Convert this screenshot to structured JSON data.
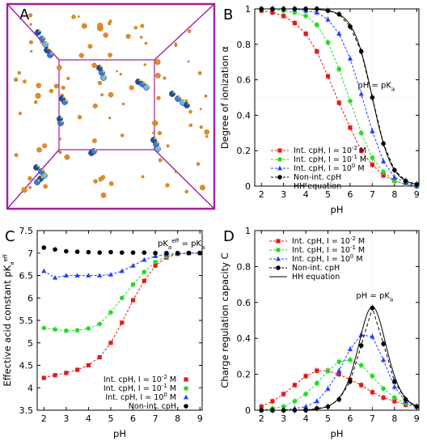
{
  "panel_labels": [
    "A",
    "B",
    "C",
    "D"
  ],
  "colors": {
    "red": "#e41a1c",
    "green": "#22dd22",
    "blue": "#1f3fff",
    "black": "#000000",
    "box": "#a020a0",
    "ion": "#e88a20",
    "polymer": "#3a7bd5"
  },
  "chart_data": [
    {
      "panel": "B",
      "type": "line",
      "xlabel": "pH",
      "ylabel": "Degree of ionization α",
      "xlim": [
        1.7,
        9.1
      ],
      "ylim": [
        0,
        1
      ],
      "xticks": [
        2,
        3,
        4,
        5,
        6,
        7,
        8,
        9
      ],
      "yticks": [
        0,
        0.2,
        0.4,
        0.6,
        0.8,
        1
      ],
      "annotation": {
        "text": "pH = pK",
        "sub": "a",
        "x": 7.0,
        "y": 0.5
      },
      "legend": [
        "Int. cpH, I = 10-2 M",
        "Int. cpH, I = 10-1 M",
        "Int. cpH, I = 100 M",
        "Non-int. cpH",
        "HH equation"
      ],
      "legend_display": [
        {
          "pre": "Int. cpH, I = 10",
          "sup": "-2",
          "post": " M"
        },
        {
          "pre": "Int. cpH, I = 10",
          "sup": "-1",
          "post": " M"
        },
        {
          "pre": "Int. cpH, I = 10",
          "sup": "0",
          "post": " M"
        },
        {
          "pre": "Non-int. cpH",
          "sup": "",
          "post": ""
        },
        {
          "pre": "HH equation",
          "sup": "",
          "post": ""
        }
      ],
      "x": [
        2,
        2.5,
        3,
        3.5,
        4,
        4.5,
        5,
        5.5,
        6,
        6.5,
        7,
        7.5,
        8,
        8.5,
        9
      ],
      "series": [
        {
          "name": "Int. cpH, I = 10-2 M",
          "color": "red",
          "marker": "square",
          "values": [
            0.99,
            0.98,
            0.96,
            0.92,
            0.86,
            0.76,
            0.62,
            0.47,
            0.33,
            0.2,
            0.12,
            0.06,
            0.03,
            0.01,
            0.0
          ]
        },
        {
          "name": "Int. cpH, I = 10-1 M",
          "color": "green",
          "marker": "circle",
          "values": [
            1.0,
            1.0,
            0.99,
            0.98,
            0.96,
            0.91,
            0.81,
            0.66,
            0.48,
            0.3,
            0.16,
            0.08,
            0.03,
            0.01,
            0.0
          ]
        },
        {
          "name": "Int. cpH, I = 100 M",
          "color": "blue",
          "marker": "triangle",
          "values": [
            1.0,
            1.0,
            1.0,
            1.0,
            0.99,
            0.98,
            0.94,
            0.86,
            0.72,
            0.52,
            0.31,
            0.14,
            0.05,
            0.02,
            0.0
          ]
        },
        {
          "name": "Non-int. cpH",
          "color": "black",
          "marker": "circle",
          "values": [
            1.0,
            1.0,
            1.0,
            1.0,
            1.0,
            1.0,
            0.99,
            0.97,
            0.9,
            0.76,
            0.5,
            0.24,
            0.09,
            0.03,
            0.01
          ]
        },
        {
          "name": "HH equation",
          "color": "black",
          "marker": "none",
          "function": "hh",
          "pKa": 7.0
        }
      ]
    },
    {
      "panel": "C",
      "type": "scatter",
      "xlabel": "pH",
      "ylabel": "Effective acid constant pKaeff",
      "ylabel_display": {
        "pre": "Effective acid constant pK",
        "sub": "a",
        "sup": "eff"
      },
      "xlim": [
        1.7,
        9.1
      ],
      "ylim": [
        3.5,
        7.5
      ],
      "xticks": [
        2,
        3,
        4,
        5,
        6,
        7,
        8,
        9
      ],
      "yticks": [
        3.5,
        4,
        4.5,
        5,
        5.5,
        6,
        6.5,
        7,
        7.5
      ],
      "annotation": {
        "text": "pKaeff = pKa"
      },
      "legend": [
        "Int. cpH, I = 10-2 M",
        "Int. cpH, I = 10-1 M",
        "Int. cpH, I = 100 M",
        "Non-int. cpH"
      ],
      "legend_display": [
        {
          "pre": "Int. cpH, I = 10",
          "sup": "-2",
          "post": " M"
        },
        {
          "pre": "Int. cpH, I = 10",
          "sup": "-1",
          "post": " M"
        },
        {
          "pre": "Int. cpH, I = 10",
          "sup": "0",
          "post": " M"
        },
        {
          "pre": "Non-int. cpH",
          "sup": "",
          "post": ""
        }
      ],
      "x": [
        2,
        2.5,
        3,
        3.5,
        4,
        4.5,
        5,
        5.5,
        6,
        6.5,
        7,
        7.5,
        8,
        8.5,
        9
      ],
      "series": [
        {
          "name": "Int. cpH, I = 10-2 M",
          "color": "red",
          "marker": "square",
          "values": [
            4.22,
            4.28,
            4.33,
            4.4,
            4.5,
            4.68,
            5.0,
            5.45,
            5.95,
            6.38,
            6.72,
            6.9,
            6.98,
            7.0,
            7.0
          ]
        },
        {
          "name": "Int. cpH, I = 10-1 M",
          "color": "green",
          "marker": "circle",
          "values": [
            5.33,
            5.3,
            5.27,
            5.28,
            5.32,
            5.42,
            5.68,
            6.0,
            6.3,
            6.58,
            6.8,
            6.93,
            6.98,
            7.0,
            7.0
          ]
        },
        {
          "name": "Int. cpH, I = 100 M",
          "color": "blue",
          "marker": "triangle",
          "values": [
            6.6,
            6.45,
            6.5,
            6.5,
            6.5,
            6.5,
            6.52,
            6.6,
            6.72,
            6.85,
            6.93,
            6.97,
            6.99,
            7.0,
            7.0
          ]
        },
        {
          "name": "Non-int. cpH",
          "color": "black",
          "marker": "circle",
          "values": [
            7.12,
            7.08,
            7.04,
            7.03,
            7.02,
            7.01,
            7.02,
            7.01,
            7.01,
            7.01,
            7.0,
            7.0,
            7.0,
            7.0,
            7.0
          ]
        }
      ]
    },
    {
      "panel": "D",
      "type": "line",
      "xlabel": "pH",
      "ylabel": "Charge regulation capacity C",
      "xlim": [
        1.7,
        9.1
      ],
      "ylim": [
        0,
        1
      ],
      "xticks": [
        2,
        3,
        4,
        5,
        6,
        7,
        8,
        9
      ],
      "yticks": [
        0,
        0.2,
        0.4,
        0.6,
        0.8,
        1
      ],
      "annotation": {
        "text": "pH = pK",
        "sub": "a",
        "x": 7.0,
        "y": 0.575
      },
      "legend": [
        "Int. cpH, I = 10-2 M",
        "Int. cpH, I = 10-1 M",
        "Int. cpH, I = 100 M",
        "Non-int. cpH",
        "HH equation"
      ],
      "legend_display": [
        {
          "pre": "Int. cpH, I = 10",
          "sup": "-2",
          "post": " M"
        },
        {
          "pre": "Int. cpH, I = 10",
          "sup": "-1",
          "post": " M"
        },
        {
          "pre": "Int. cpH, I = 10",
          "sup": "0",
          "post": " M"
        },
        {
          "pre": "Non-int. cpH",
          "sup": "",
          "post": ""
        },
        {
          "pre": "HH equation",
          "sup": "",
          "post": ""
        }
      ],
      "x": [
        2,
        2.5,
        3,
        3.5,
        4,
        4.5,
        5,
        5.5,
        6,
        6.5,
        7,
        7.5,
        8,
        8.5,
        9
      ],
      "series": [
        {
          "name": "Int. cpH, I = 10-2 M",
          "color": "red",
          "marker": "square",
          "values": [
            0.02,
            0.05,
            0.09,
            0.14,
            0.19,
            0.22,
            0.22,
            0.2,
            0.17,
            0.14,
            0.1,
            0.07,
            0.05,
            0.03,
            0.02
          ]
        },
        {
          "name": "Int. cpH, I = 10-1 M",
          "color": "green",
          "marker": "circle",
          "values": [
            0.0,
            0.01,
            0.02,
            0.05,
            0.09,
            0.15,
            0.22,
            0.27,
            0.28,
            0.25,
            0.19,
            0.12,
            0.07,
            0.04,
            0.02
          ]
        },
        {
          "name": "Int. cpH, I = 100 M",
          "color": "blue",
          "marker": "triangle",
          "values": [
            0.0,
            0.0,
            0.0,
            0.01,
            0.02,
            0.05,
            0.12,
            0.22,
            0.34,
            0.42,
            0.41,
            0.28,
            0.13,
            0.05,
            0.02
          ]
        },
        {
          "name": "Non-int. cpH",
          "color": "black",
          "marker": "circle",
          "values": [
            0.0,
            0.0,
            0.0,
            0.0,
            0.0,
            0.01,
            0.02,
            0.06,
            0.16,
            0.36,
            0.57,
            0.37,
            0.16,
            0.06,
            0.02
          ]
        },
        {
          "name": "HH equation",
          "color": "black",
          "marker": "none",
          "function": "hh_capacity",
          "pKa": 7.0
        }
      ]
    }
  ]
}
